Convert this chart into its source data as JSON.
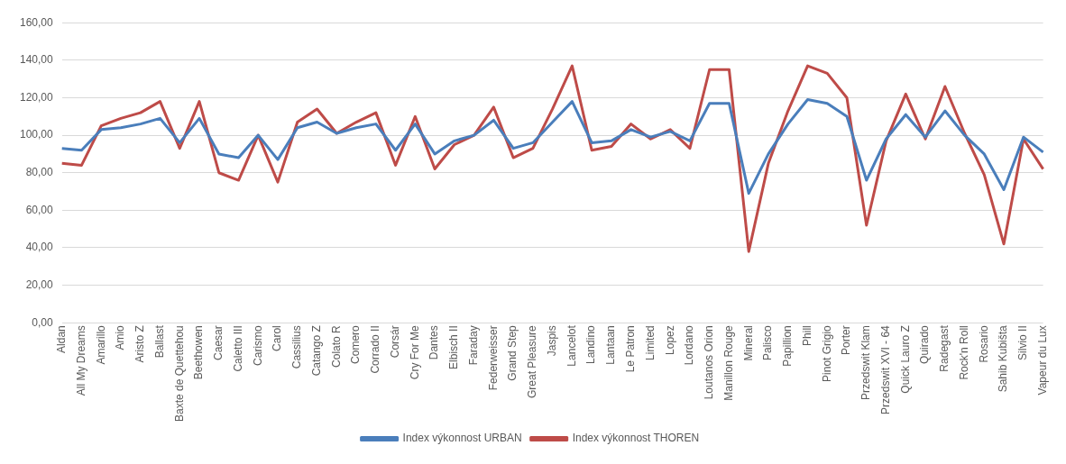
{
  "chart_data": {
    "type": "line",
    "categories": [
      "Aldan",
      "All My Dreams",
      "Amarillo",
      "Amio",
      "Aristo Z",
      "Ballast",
      "Baxte de Quettehou",
      "Beethowen",
      "Caesar",
      "Caletto III",
      "Carismo",
      "Carol",
      "Cassilius",
      "Catango Z",
      "Colato R",
      "Comero",
      "Corrado II",
      "Corsár",
      "Cry For Me",
      "Dantes",
      "Elbisch II",
      "Faraday",
      "Federweisser",
      "Grand Step",
      "Great Pleasure",
      "Jaspis",
      "Lancelot",
      "Landino",
      "Lantaan",
      "Le Patron",
      "Limited",
      "Lopez",
      "Lordano",
      "Loutanos Orion",
      "Manillon Rouge",
      "Mineral",
      "Palisco",
      "Papillion",
      "Phill",
      "Pinot Grigio",
      "Porter",
      "Przedswit Klam",
      "Przedswit XVI - 64",
      "Quick Lauro Z",
      "Quirado",
      "Radegast",
      "Rock'n Roll",
      "Rosario",
      "Sahib Kubišta",
      "Silvio II",
      "Vapeur du Lux"
    ],
    "series": [
      {
        "name": "Index výkonnost URBAN",
        "color": "#4a7ebb",
        "values": [
          93,
          92,
          103,
          104,
          106,
          109,
          96,
          109,
          90,
          88,
          100,
          87,
          104,
          107,
          101,
          104,
          106,
          92,
          106,
          90,
          97,
          100,
          108,
          93,
          96,
          107,
          118,
          96,
          97,
          103,
          99,
          102,
          97,
          117,
          117,
          69,
          90,
          106,
          119,
          117,
          110,
          76,
          98,
          111,
          99,
          113,
          100,
          90,
          71,
          99,
          91
        ]
      },
      {
        "name": "Index výkonnost THOREN",
        "color": "#be4b48",
        "values": [
          85,
          84,
          105,
          109,
          112,
          118,
          93,
          118,
          80,
          76,
          100,
          75,
          107,
          114,
          101,
          107,
          112,
          84,
          110,
          82,
          95,
          100,
          115,
          88,
          93,
          114,
          137,
          92,
          94,
          106,
          98,
          103,
          93,
          135,
          135,
          38,
          85,
          113,
          137,
          133,
          120,
          52,
          97,
          122,
          98,
          126,
          101,
          79,
          42,
          98,
          82
        ]
      }
    ],
    "ylim": [
      0,
      160
    ],
    "yticks": [
      {
        "value": 0,
        "label": "0,00"
      },
      {
        "value": 20,
        "label": "20,00"
      },
      {
        "value": 40,
        "label": "40,00"
      },
      {
        "value": 60,
        "label": "60,00"
      },
      {
        "value": 80,
        "label": "80,00"
      },
      {
        "value": 100,
        "label": "100,00"
      },
      {
        "value": 120,
        "label": "120,00"
      },
      {
        "value": 140,
        "label": "140,00"
      },
      {
        "value": 160,
        "label": "160,00"
      }
    ],
    "grid": "y",
    "legend": "bottom",
    "marker": "none",
    "line_style": "solid"
  }
}
